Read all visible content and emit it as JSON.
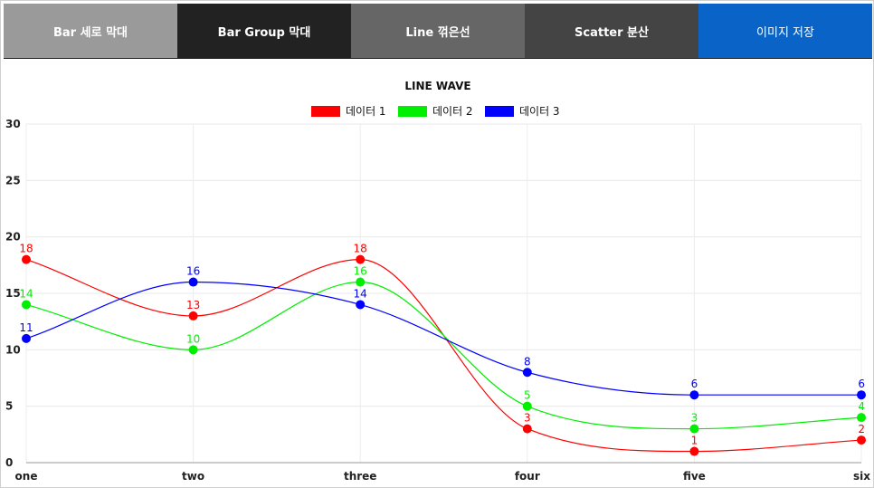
{
  "tabs": [
    {
      "label": "Bar 세로 막대"
    },
    {
      "label": "Bar Group 막대"
    },
    {
      "label": "Line 꺾은선"
    },
    {
      "label": "Scatter 분산"
    },
    {
      "label": "이미지 저장"
    }
  ],
  "chart_data": {
    "type": "line",
    "title": "LINE WAVE",
    "categories": [
      "one",
      "two",
      "three",
      "four",
      "five",
      "six"
    ],
    "ylim": [
      0,
      30
    ],
    "yticks": [
      0,
      5,
      10,
      15,
      20,
      25,
      30
    ],
    "grid": true,
    "legend_position": "top",
    "series": [
      {
        "name": "데이터 1",
        "color": "#ff0000",
        "values": [
          18,
          13,
          18,
          3,
          1,
          2
        ]
      },
      {
        "name": "데이터 2",
        "color": "#00ee00",
        "values": [
          14,
          10,
          16,
          5,
          3,
          4
        ]
      },
      {
        "name": "데이터 3",
        "color": "#0000ff",
        "values": [
          11,
          16,
          14,
          8,
          6,
          6
        ]
      }
    ]
  }
}
